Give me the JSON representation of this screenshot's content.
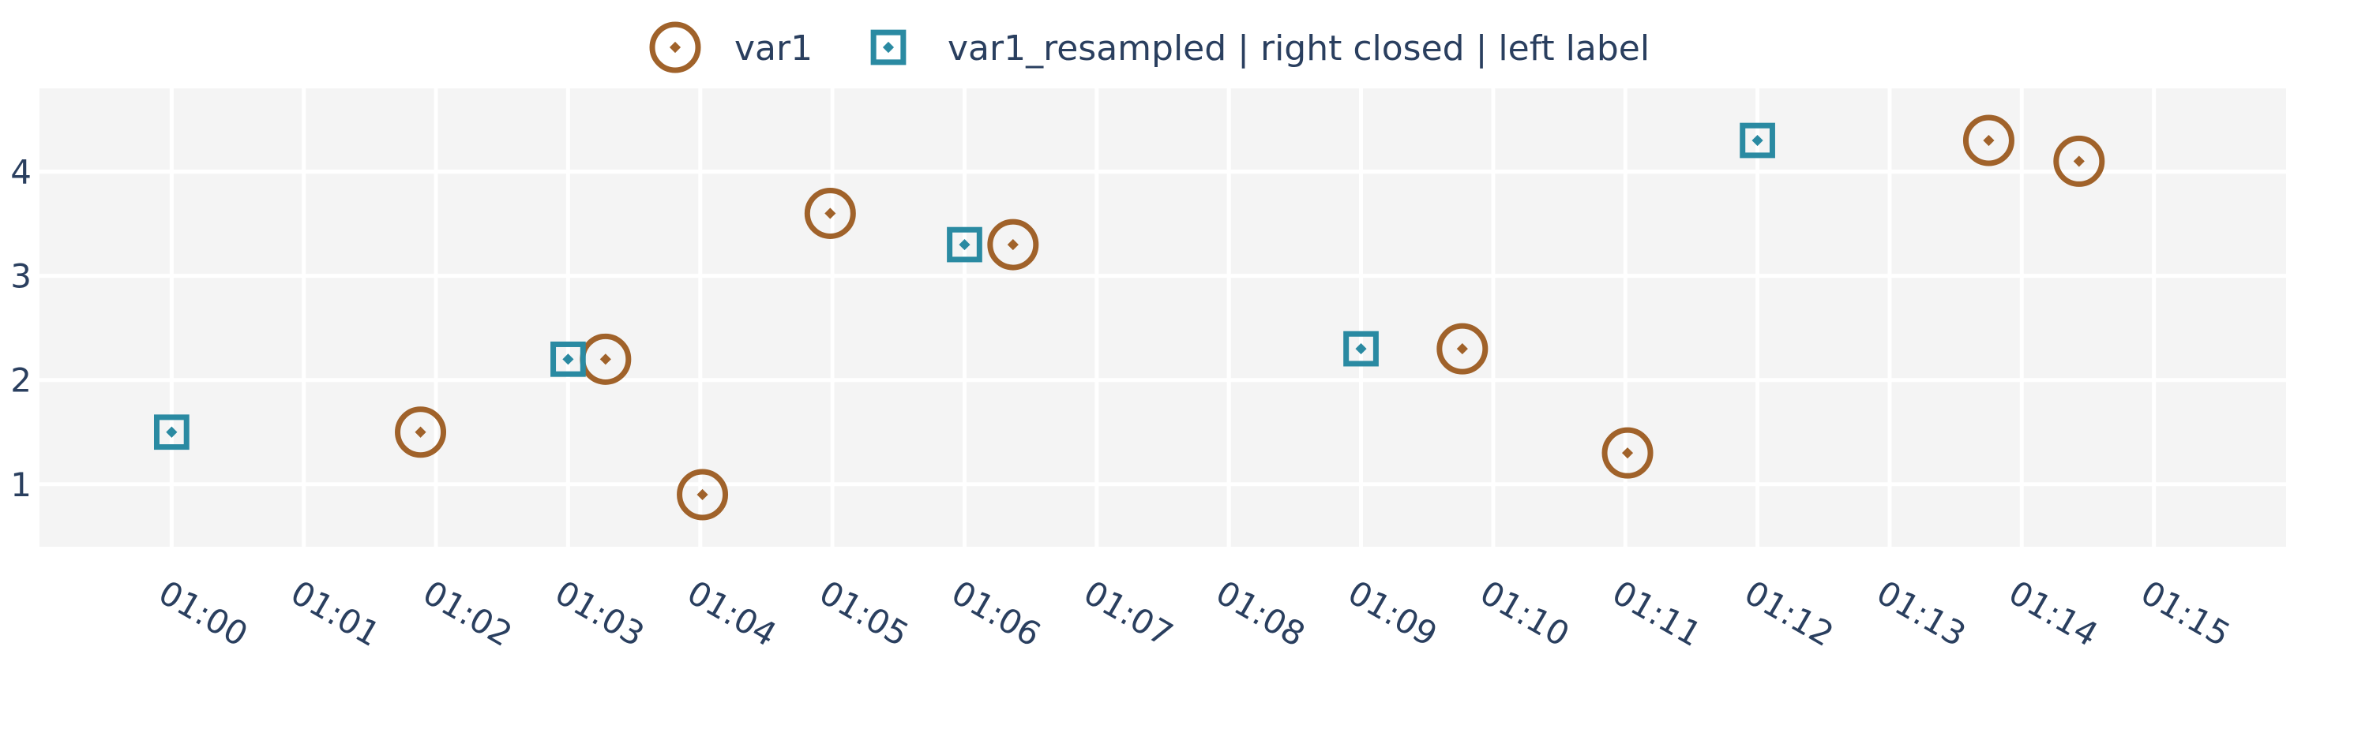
{
  "chart_data": {
    "type": "scatter",
    "title": "",
    "xlabel": "",
    "ylabel": "",
    "x_axis_type": "time",
    "x_tick_labels": [
      "01:00",
      "01:01",
      "01:02",
      "01:03",
      "01:04",
      "01:05",
      "01:06",
      "01:07",
      "01:08",
      "01:09",
      "01:10",
      "01:11",
      "01:12",
      "01:13",
      "01:14",
      "01:15"
    ],
    "y_tick_labels": [
      "1",
      "2",
      "3",
      "4"
    ],
    "xlim": [
      "00:59:00",
      "01:16:00"
    ],
    "ylim": [
      0.4,
      4.8
    ],
    "grid": true,
    "legend_position": "top-center",
    "plot_background": "#f4f4f4",
    "series": [
      {
        "name": "var1",
        "marker": "circle-open-dot",
        "color": "#a0622a",
        "points": [
          {
            "x": "01:01:53",
            "y": 1.5
          },
          {
            "x": "01:03:17",
            "y": 2.2
          },
          {
            "x": "01:04:01",
            "y": 0.9
          },
          {
            "x": "01:04:59",
            "y": 3.6
          },
          {
            "x": "01:06:22",
            "y": 3.3
          },
          {
            "x": "01:09:46",
            "y": 2.3
          },
          {
            "x": "01:11:01",
            "y": 1.3
          },
          {
            "x": "01:13:45",
            "y": 4.3
          },
          {
            "x": "01:14:26",
            "y": 4.1
          }
        ]
      },
      {
        "name": "var1_resampled | right closed | left label",
        "marker": "square-open-dot",
        "color": "#2a8aa2",
        "points": [
          {
            "x": "01:00:00",
            "y": 1.5
          },
          {
            "x": "01:03:00",
            "y": 2.2
          },
          {
            "x": "01:06:00",
            "y": 3.3
          },
          {
            "x": "01:09:00",
            "y": 2.3
          },
          {
            "x": "01:12:00",
            "y": 4.3
          }
        ]
      }
    ]
  }
}
